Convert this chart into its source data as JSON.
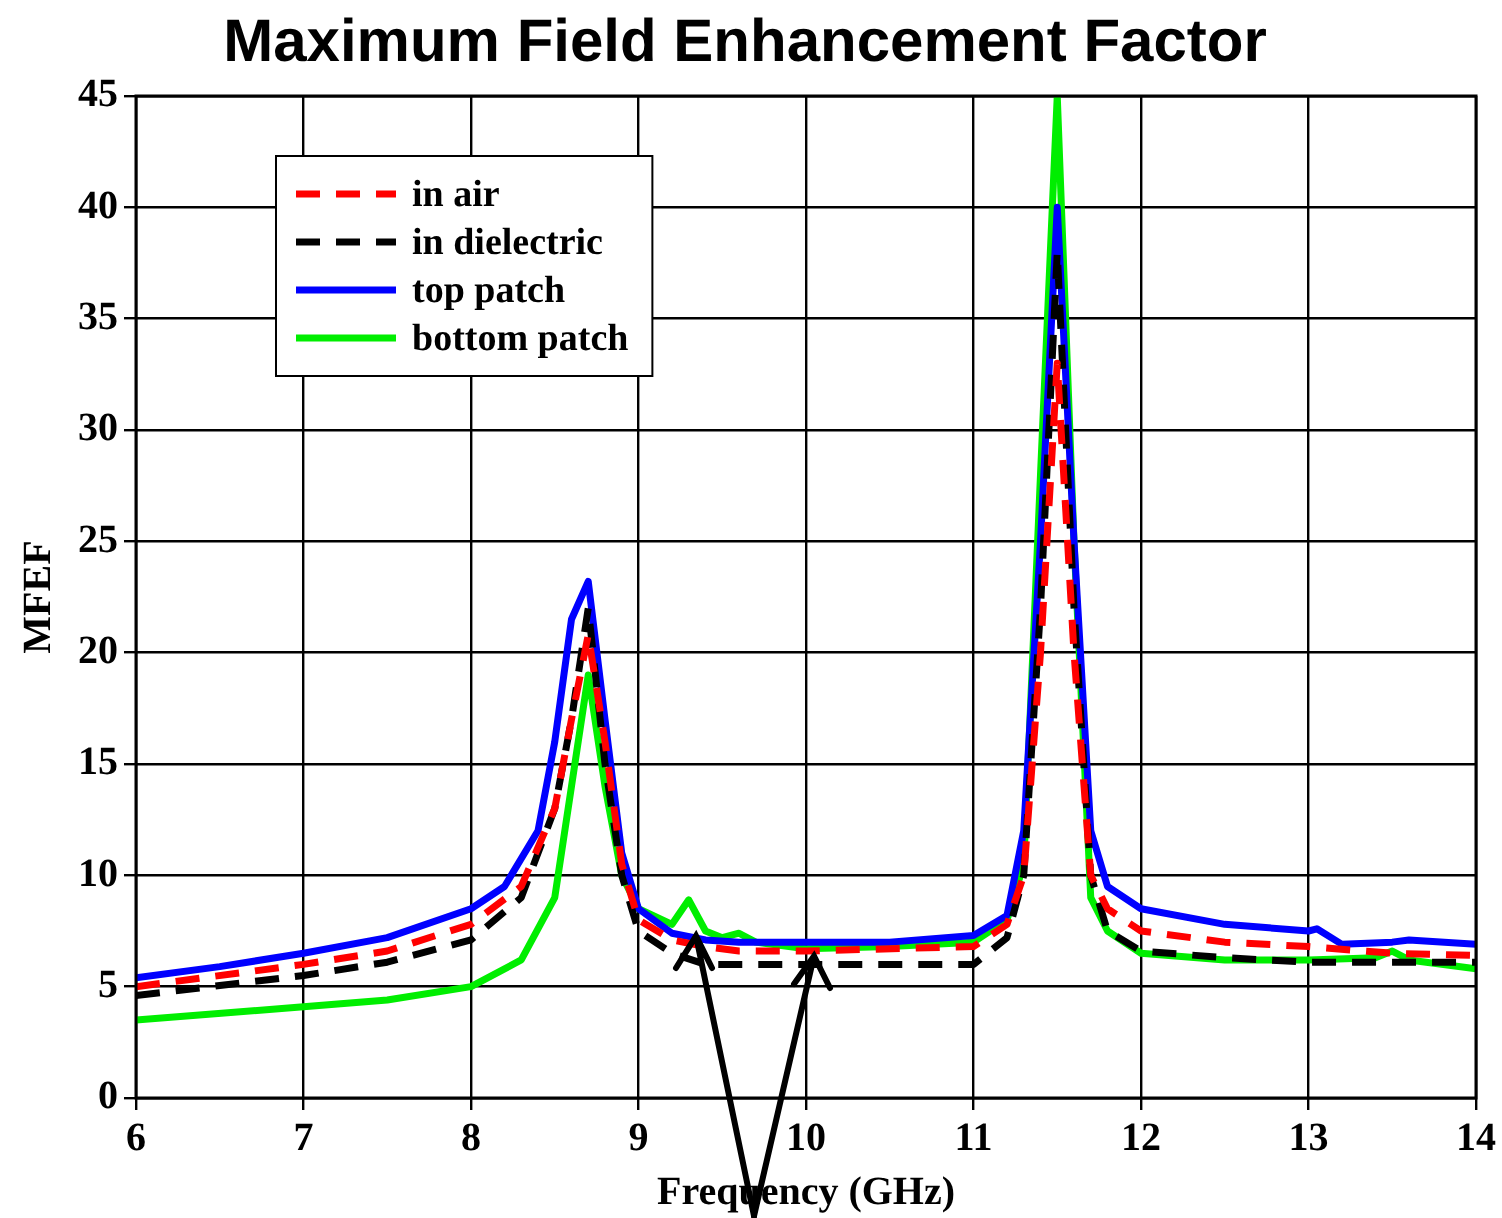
{
  "chart_data": {
    "type": "line",
    "title": "Maximum Field Enhancement Factor",
    "xlabel": "Frequency (GHz)",
    "ylabel": "MFEF",
    "xlim": [
      6,
      14
    ],
    "xticks": [
      6,
      7,
      8,
      9,
      10,
      11,
      12,
      13,
      14
    ],
    "ylim": [
      0,
      45
    ],
    "yticks": [
      0,
      5,
      10,
      15,
      20,
      25,
      30,
      35,
      40,
      45
    ],
    "grid": true,
    "legend": "top left",
    "marker": "none",
    "series": [
      {
        "name": "in air",
        "color": "#ff0000",
        "line_style": "dashed",
        "x": [
          6,
          7,
          7.5,
          8,
          8.3,
          8.5,
          8.6,
          8.7,
          8.8,
          8.9,
          9,
          9.2,
          9.4,
          9.6,
          10,
          11,
          11.2,
          11.3,
          11.4,
          11.5,
          11.6,
          11.7,
          11.8,
          12,
          12.5,
          13,
          13.5,
          14
        ],
        "values": [
          5.0,
          6.0,
          6.6,
          7.8,
          9.5,
          13,
          17,
          20.8,
          16,
          10.5,
          8,
          7.1,
          6.8,
          6.6,
          6.6,
          6.8,
          7.8,
          10,
          20,
          33,
          20,
          10,
          8.5,
          7.5,
          7.0,
          6.8,
          6.5,
          6.4
        ]
      },
      {
        "name": "in dielectric",
        "color": "#000000",
        "line_style": "dashed",
        "x": [
          6,
          7,
          7.5,
          8,
          8.3,
          8.5,
          8.6,
          8.7,
          8.8,
          8.9,
          9,
          9.2,
          9.4,
          10,
          11,
          11.2,
          11.3,
          11.4,
          11.5,
          11.6,
          11.7,
          11.8,
          12,
          12.5,
          13,
          13.5,
          14
        ],
        "values": [
          4.6,
          5.5,
          6.1,
          7.1,
          9,
          13,
          17,
          22,
          15,
          10,
          7.5,
          6.5,
          6.0,
          6.0,
          6.0,
          7.2,
          10,
          22,
          38,
          22,
          10,
          7.5,
          6.6,
          6.3,
          6.1,
          6.1,
          6.1
        ]
      },
      {
        "name": "top patch",
        "color": "#0000ff",
        "line_style": "solid",
        "x": [
          6,
          6.5,
          7,
          7.5,
          8,
          8.2,
          8.4,
          8.5,
          8.6,
          8.7,
          8.8,
          8.9,
          9,
          9.2,
          9.4,
          9.6,
          10,
          10.5,
          11,
          11.2,
          11.3,
          11.4,
          11.5,
          11.6,
          11.7,
          11.8,
          12,
          12.5,
          13,
          13.05,
          13.2,
          13.5,
          13.6,
          14
        ],
        "values": [
          5.4,
          5.9,
          6.5,
          7.2,
          8.5,
          9.5,
          12,
          16,
          21.5,
          23.2,
          17,
          11,
          8.5,
          7.4,
          7.1,
          7.0,
          7.0,
          7.0,
          7.3,
          8.2,
          12,
          25,
          40,
          25,
          12,
          9.5,
          8.5,
          7.8,
          7.5,
          7.6,
          6.9,
          7.0,
          7.1,
          6.9
        ]
      },
      {
        "name": "bottom patch",
        "color": "#00ee00",
        "line_style": "solid",
        "x": [
          6,
          7,
          7.5,
          8,
          8.3,
          8.5,
          8.6,
          8.7,
          8.8,
          8.9,
          9,
          9.2,
          9.3,
          9.4,
          9.5,
          9.6,
          9.7,
          10,
          10.5,
          11,
          11.2,
          11.3,
          11.4,
          11.5,
          11.6,
          11.7,
          11.8,
          12,
          12.5,
          13,
          13.4,
          13.5,
          13.6,
          14
        ],
        "values": [
          3.5,
          4.1,
          4.4,
          5.0,
          6.2,
          9,
          14,
          19,
          14,
          10,
          8.5,
          7.8,
          8.9,
          7.5,
          7.2,
          7.4,
          7.0,
          6.7,
          6.8,
          7.0,
          8,
          10.5,
          28,
          45,
          25,
          9,
          7.5,
          6.5,
          6.2,
          6.2,
          6.3,
          6.6,
          6.2,
          5.8
        ]
      }
    ]
  }
}
